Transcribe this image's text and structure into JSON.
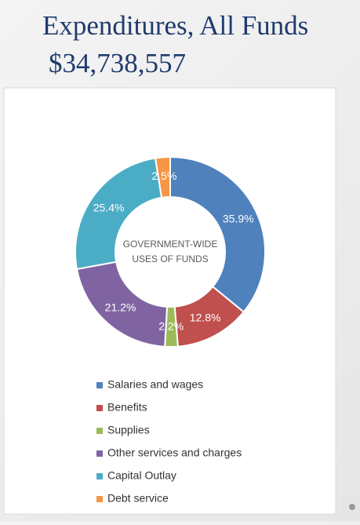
{
  "chart_data": {
    "type": "donut",
    "title": "Expenditures, All Funds",
    "subtitle": "$34,738,557",
    "center_label": [
      "GOVERNMENT-WIDE",
      "USES OF FUNDS"
    ],
    "categories": [
      "Salaries and wages",
      "Benefits",
      "Supplies",
      "Other services and charges",
      "Capital Outlay",
      "Debt service"
    ],
    "values": [
      35.9,
      12.8,
      2.2,
      21.2,
      25.4,
      2.5
    ],
    "value_labels": [
      "35.9%",
      "12.8%",
      "2.2%",
      "21.2%",
      "25.4%",
      "2.5%"
    ],
    "colors": [
      "#4f81bd",
      "#c0504d",
      "#9bbb59",
      "#8064a2",
      "#4bacc6",
      "#f79646"
    ],
    "legend": "bottom"
  }
}
